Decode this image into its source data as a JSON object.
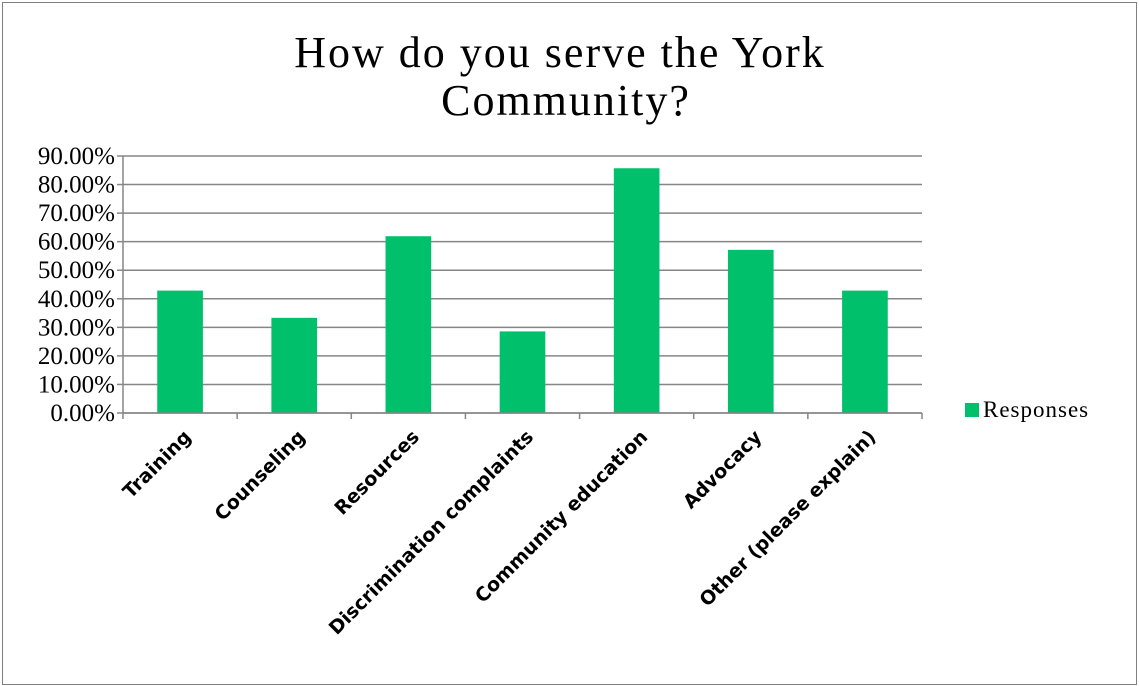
{
  "chart_data": {
    "type": "bar",
    "title_lines": [
      "How do you serve the York",
      "Community?"
    ],
    "categories": [
      "Training",
      "Counseling",
      "Resources",
      "Discrimination complaints",
      "Community education",
      "Advocacy",
      "Other (please explain)"
    ],
    "series": [
      {
        "name": "Responses",
        "values": [
          0.4286,
          0.3333,
          0.619,
          0.2857,
          0.8571,
          0.5714,
          0.4286
        ]
      }
    ],
    "ylim": [
      0,
      0.9
    ],
    "yticks": [
      0,
      0.1,
      0.2,
      0.3,
      0.4,
      0.5,
      0.6,
      0.7,
      0.8,
      0.9
    ],
    "ytick_labels": [
      "0.00%",
      "10.00%",
      "20.00%",
      "30.00%",
      "40.00%",
      "50.00%",
      "60.00%",
      "70.00%",
      "80.00%",
      "90.00%"
    ],
    "grid": true,
    "legend_position": "right",
    "bar_color": "#00c06b",
    "grid_color": "#868686"
  }
}
